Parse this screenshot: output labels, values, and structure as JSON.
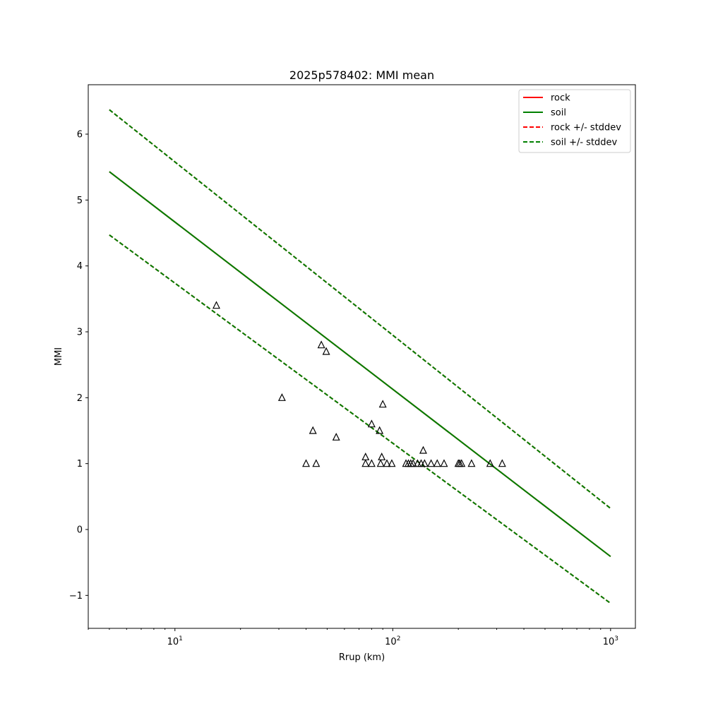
{
  "chart_data": {
    "type": "scatter",
    "title": "2025p578402: MMI mean",
    "xlabel": "Rrup (km)",
    "ylabel": "MMI",
    "xscale": "log",
    "xlim": [
      4,
      1300
    ],
    "ylim": [
      -1.5,
      6.75
    ],
    "x_ticks": [
      {
        "value": 10,
        "base": "10",
        "exp": "1"
      },
      {
        "value": 100,
        "base": "10",
        "exp": "2"
      },
      {
        "value": 1000,
        "base": "10",
        "exp": "3"
      }
    ],
    "y_ticks": [
      {
        "value": -1,
        "label": "−1"
      },
      {
        "value": 0,
        "label": "0"
      },
      {
        "value": 1,
        "label": "1"
      },
      {
        "value": 2,
        "label": "2"
      },
      {
        "value": 3,
        "label": "3"
      },
      {
        "value": 4,
        "label": "4"
      },
      {
        "value": 5,
        "label": "5"
      },
      {
        "value": 6,
        "label": "6"
      }
    ],
    "legend_position": "top-right",
    "series": [
      {
        "name": "rock",
        "style": "solid",
        "color": "#ff0000",
        "x": [
          5,
          1000
        ],
        "y": [
          5.43,
          -0.41
        ]
      },
      {
        "name": "soil",
        "style": "solid",
        "color": "#008000",
        "x": [
          5,
          1000
        ],
        "y": [
          5.43,
          -0.41
        ]
      },
      {
        "name": "rock +/- stddev",
        "style": "dashed",
        "color": "#ff0000",
        "x": [
          5,
          1000
        ],
        "y_upper": [
          6.37,
          0.32
        ],
        "y_lower": [
          4.47,
          -1.12
        ]
      },
      {
        "name": "soil +/- stddev",
        "style": "dashed",
        "color": "#008000",
        "x": [
          5,
          1000
        ],
        "y_upper": [
          6.37,
          0.32
        ],
        "y_lower": [
          4.47,
          -1.12
        ]
      }
    ],
    "observations": {
      "marker": "triangle",
      "points": [
        [
          15.5,
          3.4
        ],
        [
          31,
          2.0
        ],
        [
          40,
          1.0
        ],
        [
          43,
          1.5
        ],
        [
          44.5,
          1.0
        ],
        [
          47,
          2.8
        ],
        [
          49.5,
          2.7
        ],
        [
          55,
          1.4
        ],
        [
          75,
          1.1
        ],
        [
          75,
          1.0
        ],
        [
          80,
          1.6
        ],
        [
          80,
          1.0
        ],
        [
          87,
          1.5
        ],
        [
          88,
          1.0
        ],
        [
          89,
          1.1
        ],
        [
          90,
          1.9
        ],
        [
          94,
          1.0
        ],
        [
          99,
          1.0
        ],
        [
          115,
          1.0
        ],
        [
          118,
          1.0
        ],
        [
          121,
          1.0
        ],
        [
          124,
          1.0
        ],
        [
          130,
          1.0
        ],
        [
          135,
          1.0
        ],
        [
          138,
          1.2
        ],
        [
          140,
          1.0
        ],
        [
          150,
          1.0
        ],
        [
          160,
          1.0
        ],
        [
          172,
          1.0
        ],
        [
          200,
          1.0
        ],
        [
          203,
          1.0
        ],
        [
          207,
          1.0
        ],
        [
          230,
          1.0
        ],
        [
          280,
          1.0
        ],
        [
          318,
          1.0
        ]
      ]
    }
  }
}
